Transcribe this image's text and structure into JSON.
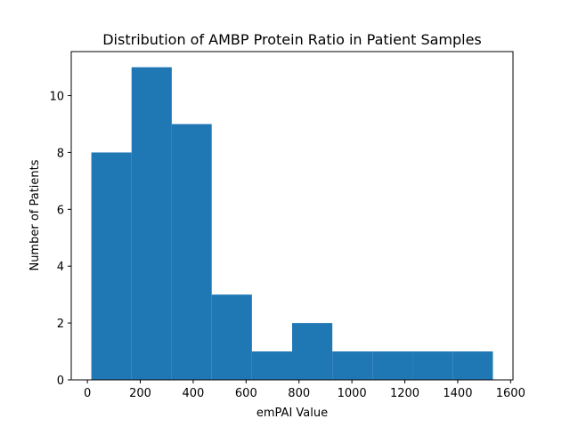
{
  "chart_data": {
    "type": "bar",
    "title": "Distribution of AMBP Protein Ratio in Patient Samples",
    "xlabel": "emPAI Value",
    "ylabel": "Number of Patients",
    "bins": [
      {
        "start": 15,
        "end": 167,
        "count": 8
      },
      {
        "start": 167,
        "end": 319,
        "count": 11
      },
      {
        "start": 319,
        "end": 470,
        "count": 9
      },
      {
        "start": 470,
        "end": 622,
        "count": 3
      },
      {
        "start": 622,
        "end": 774,
        "count": 1
      },
      {
        "start": 774,
        "end": 926,
        "count": 2
      },
      {
        "start": 926,
        "end": 1078,
        "count": 1
      },
      {
        "start": 1078,
        "end": 1230,
        "count": 1
      },
      {
        "start": 1230,
        "end": 1381,
        "count": 1
      },
      {
        "start": 1381,
        "end": 1533,
        "count": 1
      }
    ],
    "xlim": [
      -61,
      1609
    ],
    "ylim": [
      0,
      11.55
    ],
    "xticks": [
      "0",
      "200",
      "400",
      "600",
      "800",
      "1000",
      "1200",
      "1400",
      "1600"
    ],
    "yticks": [
      "0",
      "2",
      "4",
      "6",
      "8",
      "10"
    ],
    "bar_color": "#1f77b4",
    "grid": false
  }
}
